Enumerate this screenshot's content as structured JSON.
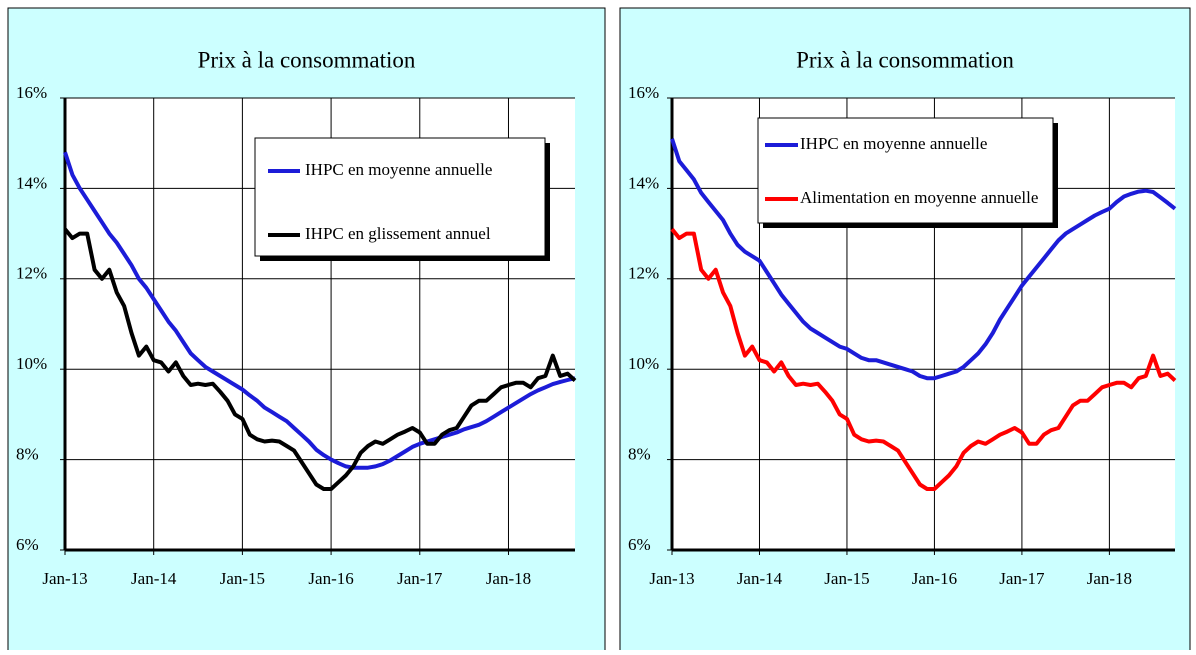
{
  "chart_data": [
    {
      "type": "line",
      "title": "Prix à la consommation",
      "categories": [
        "Jan-13",
        null,
        null,
        null,
        null,
        null,
        null,
        null,
        null,
        null,
        null,
        null,
        "Jan-14",
        null,
        null,
        null,
        null,
        null,
        null,
        null,
        null,
        null,
        null,
        null,
        "Jan-15",
        null,
        null,
        null,
        null,
        null,
        null,
        null,
        null,
        null,
        null,
        null,
        "Jan-16",
        null,
        null,
        null,
        null,
        null,
        null,
        null,
        null,
        null,
        null,
        null,
        "Jan-17",
        null,
        null,
        null,
        null,
        null,
        null,
        null,
        null,
        null,
        null,
        null,
        "Jan-18",
        null,
        null,
        null,
        null,
        null,
        null,
        null,
        null,
        null
      ],
      "ylim": [
        6,
        16
      ],
      "yticks": [
        {
          "value": 6,
          "label": "6%"
        },
        {
          "value": 8,
          "label": "8%"
        },
        {
          "value": 10,
          "label": "10%"
        },
        {
          "value": 12,
          "label": "12%"
        },
        {
          "value": 14,
          "label": "14%"
        },
        {
          "value": 16,
          "label": "16%"
        }
      ],
      "grid": true,
      "legend": "upper right",
      "series": [
        {
          "name": "IHPC en moyenne annuelle",
          "color": "#1c1cd8",
          "values": [
            14.8,
            14.3,
            14.0,
            13.75,
            13.5,
            13.25,
            13.0,
            12.8,
            12.55,
            12.3,
            12.0,
            11.8,
            11.55,
            11.3,
            11.05,
            10.85,
            10.6,
            10.35,
            10.2,
            10.05,
            9.95,
            9.85,
            9.75,
            9.65,
            9.55,
            9.42,
            9.3,
            9.15,
            9.05,
            8.95,
            8.85,
            8.7,
            8.55,
            8.4,
            8.22,
            8.1,
            8.0,
            7.92,
            7.85,
            7.82,
            7.82,
            7.82,
            7.85,
            7.9,
            7.98,
            8.08,
            8.18,
            8.28,
            8.35,
            8.4,
            8.45,
            8.5,
            8.55,
            8.6,
            8.67,
            8.72,
            8.77,
            8.85,
            8.95,
            9.05,
            9.15,
            9.25,
            9.35,
            9.45,
            9.53,
            9.6,
            9.67,
            9.72,
            9.76,
            9.8
          ]
        },
        {
          "name": "IHPC en glissement annuel",
          "color": "#000000",
          "values": [
            13.1,
            12.9,
            13.0,
            13.0,
            12.2,
            12.0,
            12.2,
            11.7,
            11.4,
            10.8,
            10.3,
            10.5,
            10.2,
            10.15,
            9.95,
            10.15,
            9.85,
            9.65,
            9.68,
            9.65,
            9.68,
            9.5,
            9.3,
            9.0,
            8.9,
            8.55,
            8.45,
            8.4,
            8.42,
            8.4,
            8.3,
            8.2,
            7.95,
            7.7,
            7.45,
            7.35,
            7.35,
            7.5,
            7.65,
            7.85,
            8.15,
            8.3,
            8.4,
            8.35,
            8.45,
            8.55,
            8.62,
            8.7,
            8.6,
            8.35,
            8.35,
            8.55,
            8.65,
            8.7,
            8.95,
            9.2,
            9.3,
            9.3,
            9.45,
            9.6,
            9.65,
            9.7,
            9.7,
            9.6,
            9.8,
            9.85,
            10.3,
            9.85,
            9.9,
            9.75
          ]
        }
      ]
    },
    {
      "type": "line",
      "title": "Prix à la consommation",
      "categories": [
        "Jan-13",
        null,
        null,
        null,
        null,
        null,
        null,
        null,
        null,
        null,
        null,
        null,
        "Jan-14",
        null,
        null,
        null,
        null,
        null,
        null,
        null,
        null,
        null,
        null,
        null,
        "Jan-15",
        null,
        null,
        null,
        null,
        null,
        null,
        null,
        null,
        null,
        null,
        null,
        "Jan-16",
        null,
        null,
        null,
        null,
        null,
        null,
        null,
        null,
        null,
        null,
        null,
        "Jan-17",
        null,
        null,
        null,
        null,
        null,
        null,
        null,
        null,
        null,
        null,
        null,
        "Jan-18",
        null,
        null,
        null,
        null,
        null,
        null,
        null,
        null,
        null
      ],
      "ylim": [
        6,
        16
      ],
      "yticks": [
        {
          "value": 6,
          "label": "6%"
        },
        {
          "value": 8,
          "label": "8%"
        },
        {
          "value": 10,
          "label": "10%"
        },
        {
          "value": 12,
          "label": "12%"
        },
        {
          "value": 14,
          "label": "14%"
        },
        {
          "value": 16,
          "label": "16%"
        }
      ],
      "grid": true,
      "legend": "upper center",
      "series": [
        {
          "name": "IHPC en moyenne annuelle",
          "color": "#1c1cd8",
          "values": [
            15.1,
            14.6,
            14.4,
            14.2,
            13.9,
            13.7,
            13.5,
            13.3,
            13.0,
            12.75,
            12.6,
            12.5,
            12.4,
            12.15,
            11.9,
            11.65,
            11.45,
            11.25,
            11.05,
            10.9,
            10.8,
            10.7,
            10.6,
            10.5,
            10.45,
            10.35,
            10.25,
            10.2,
            10.2,
            10.15,
            10.1,
            10.05,
            10.0,
            9.95,
            9.85,
            9.8,
            9.8,
            9.85,
            9.9,
            9.95,
            10.05,
            10.2,
            10.35,
            10.55,
            10.8,
            11.1,
            11.35,
            11.6,
            11.85,
            12.05,
            12.25,
            12.45,
            12.65,
            12.85,
            13.0,
            13.1,
            13.2,
            13.3,
            13.4,
            13.48,
            13.55,
            13.7,
            13.82,
            13.88,
            13.93,
            13.95,
            13.92,
            13.8,
            13.68,
            13.55
          ]
        },
        {
          "name": "Alimentation en moyenne annuelle",
          "color": "#ff0000",
          "values": [
            13.1,
            12.9,
            13.0,
            13.0,
            12.2,
            12.0,
            12.2,
            11.7,
            11.4,
            10.8,
            10.3,
            10.5,
            10.2,
            10.15,
            9.95,
            10.15,
            9.85,
            9.65,
            9.68,
            9.65,
            9.68,
            9.5,
            9.3,
            9.0,
            8.9,
            8.55,
            8.45,
            8.4,
            8.42,
            8.4,
            8.3,
            8.2,
            7.95,
            7.7,
            7.45,
            7.35,
            7.35,
            7.5,
            7.65,
            7.85,
            8.15,
            8.3,
            8.4,
            8.35,
            8.45,
            8.55,
            8.62,
            8.7,
            8.6,
            8.35,
            8.35,
            8.55,
            8.65,
            8.7,
            8.95,
            9.2,
            9.3,
            9.3,
            9.45,
            9.6,
            9.65,
            9.7,
            9.7,
            9.6,
            9.8,
            9.85,
            10.3,
            9.85,
            9.9,
            9.75
          ]
        }
      ]
    }
  ]
}
